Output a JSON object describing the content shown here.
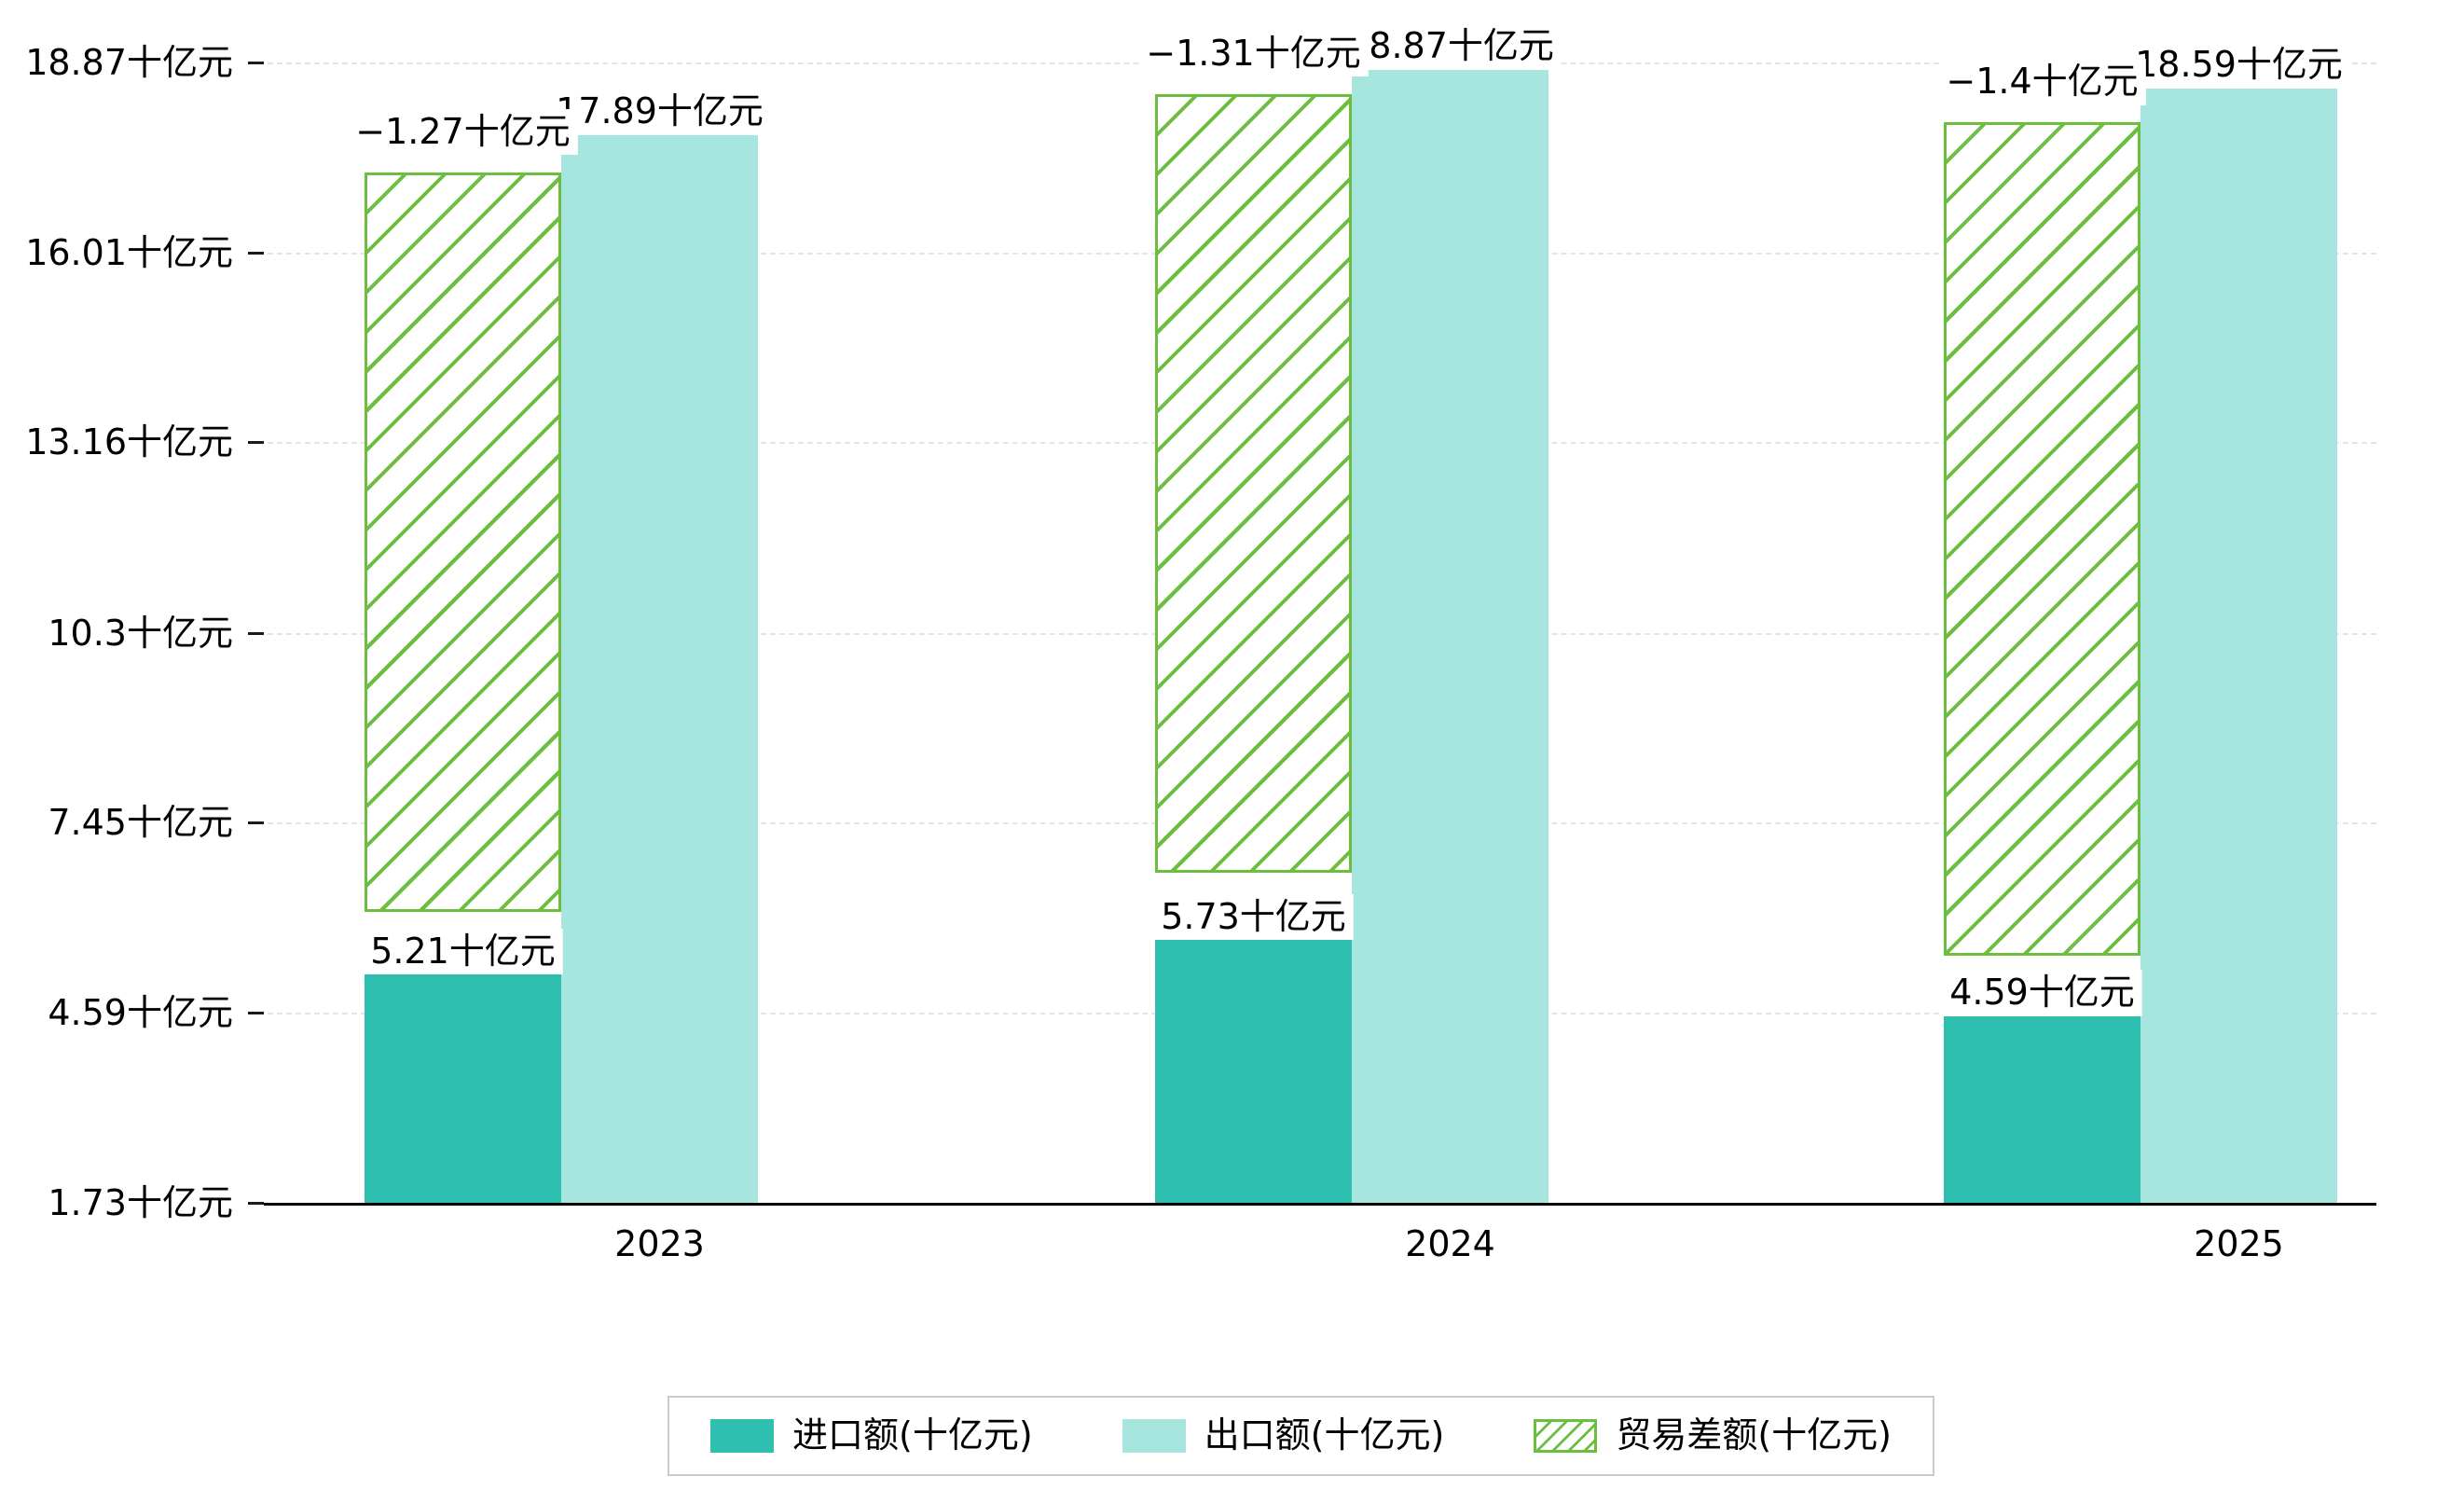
{
  "chart_data": {
    "type": "bar",
    "title": "",
    "unit": "十亿元",
    "categories": [
      "2023",
      "2024",
      "2025"
    ],
    "series": [
      {
        "key": "import",
        "name": "进口额(十亿元)",
        "style": "solid",
        "color": "#2FBFB0",
        "values": [
          5.21,
          5.73,
          4.59
        ],
        "labels": [
          "5.21十亿元",
          "5.73十亿元",
          "4.59十亿元"
        ]
      },
      {
        "key": "export",
        "name": "出口额(十亿元)",
        "style": "solid",
        "color": "#A7E6DF",
        "values": [
          17.89,
          18.87,
          18.59
        ],
        "labels": [
          "17.89十亿元",
          "18.87十亿元",
          "18.59十亿元"
        ]
      },
      {
        "key": "balance",
        "name": "贸易差额(十亿元)",
        "style": "hatched",
        "color": "#6CBE3F",
        "values": [
          -1.27,
          -1.31,
          -1.4
        ],
        "labels": [
          "−1.27十亿元",
          "−1.31十亿元",
          "−1.4十亿元"
        ],
        "bar_spans": [
          [
            6.1,
            17.22
          ],
          [
            6.69,
            18.4
          ],
          [
            5.44,
            17.97
          ]
        ]
      }
    ],
    "y_axis": {
      "tick_labels": [
        "18.87十亿元",
        "16.01十亿元",
        "13.16十亿元",
        "10.3十亿元",
        "7.45十亿元",
        "4.59十亿元",
        "1.73十亿元"
      ],
      "tick_values": [
        18.87,
        16.01,
        13.16,
        10.3,
        7.45,
        4.59,
        1.73
      ],
      "min": 1.73,
      "max": 18.87
    },
    "ylim": [
      1.73,
      18.87
    ],
    "grid": "horizontal-dashed",
    "legend_position": "bottom-center",
    "colors": {
      "axis": "#000000",
      "grid": "#e4e4e4",
      "label_bg": "#ffffff",
      "legend_border": "#cccccc"
    }
  }
}
